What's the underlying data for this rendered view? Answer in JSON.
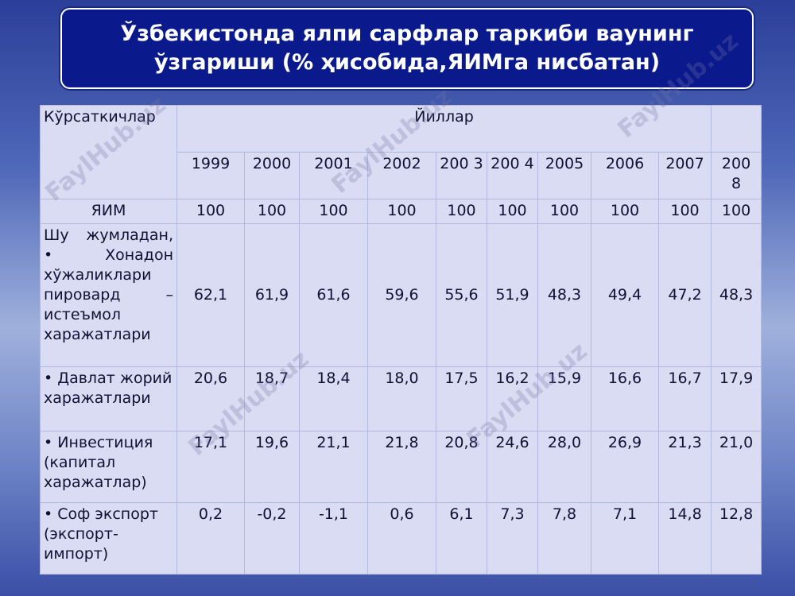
{
  "title": {
    "line1": "Ўзбекистонда ялпи сарфлар таркиби ваунинг",
    "line2": "ўзгариши (% ҳисобида,ЯИМга нисбатан)"
  },
  "table": {
    "header_indicators": "Кўрсаткичлар",
    "header_years": "Йиллар",
    "years": [
      "1999",
      "2000",
      "2001",
      "2002",
      "200 3",
      "200 4",
      "2005",
      "2006",
      "2007",
      "200 8"
    ],
    "rows": [
      {
        "label": "ЯИМ",
        "values": [
          "100",
          "100",
          "100",
          "100",
          "100",
          "100",
          "100",
          "100",
          "100",
          "100"
        ]
      },
      {
        "label": "Шу жумладан, • Хонадон хўжаликлари пировард – истеъмол харажатлари",
        "values": [
          "62,1",
          "61,9",
          "61,6",
          "59,6",
          "55,6",
          "51,9",
          "48,3",
          "49,4",
          "47,2",
          "48,3"
        ]
      },
      {
        "label": "• Давлат жорий харажатлари",
        "values": [
          "20,6",
          "18,7",
          "18,4",
          "18,0",
          "17,5",
          "16,2",
          "15,9",
          "16,6",
          "16,7",
          "17,9"
        ]
      },
      {
        "label": "• Инвестиция (капитал харажатлар)",
        "values": [
          "17,1",
          "19,6",
          "21,1",
          "21,8",
          "20,8",
          "24,6",
          "28,0",
          "26,9",
          "21,3",
          "21,0"
        ]
      },
      {
        "label": "• Соф экспорт (экспорт-импорт)",
        "values": [
          "0,2",
          "-0,2",
          "-1,1",
          "0,6",
          "6,1",
          "7,3",
          "7,8",
          "7,1",
          "14,8",
          "12,8"
        ]
      }
    ]
  },
  "watermark": "FaylHub.uz"
}
